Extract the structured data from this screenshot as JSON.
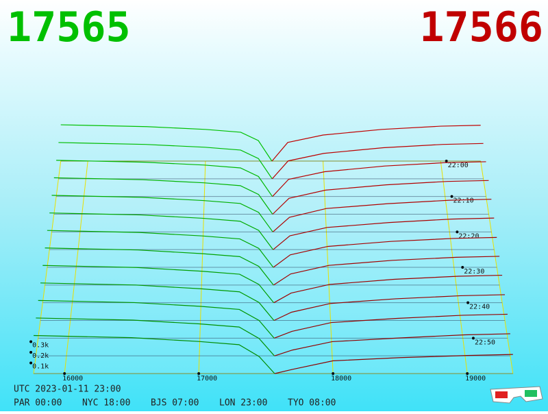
{
  "chart_data": {
    "type": "depth3d",
    "bid_price": 17565,
    "ask_price": 17566,
    "bid_color": "#00c000",
    "ask_color": "#c00000",
    "xlim": [
      15770,
      19340
    ],
    "xticks": [
      16000,
      17000,
      18000,
      19000
    ],
    "zticks": [
      {
        "value": 100,
        "label": "0.1k"
      },
      {
        "value": 200,
        "label": "0.2k"
      },
      {
        "value": 300,
        "label": "0.3k"
      }
    ],
    "tlim": [
      0,
      60
    ],
    "tticks": [
      {
        "value": 0,
        "label": "22:00"
      },
      {
        "value": 10,
        "label": "22:10"
      },
      {
        "value": 20,
        "label": "22:20"
      },
      {
        "value": 30,
        "label": "22:30"
      },
      {
        "value": 40,
        "label": "22:40"
      },
      {
        "value": 50,
        "label": "22:50"
      }
    ],
    "bid_prices": [
      15770,
      16500,
      17000,
      17300,
      17450,
      17565
    ],
    "ask_prices": [
      17566,
      17700,
      18000,
      18500,
      19000,
      19340
    ],
    "snapshots": [
      {
        "t": 0,
        "bid": [
          390,
          370,
          340,
          310,
          220,
          0
        ],
        "ask": [
          0,
          200,
          280,
          340,
          375,
          385
        ]
      },
      {
        "t": 5,
        "bid": [
          385,
          365,
          335,
          305,
          215,
          0
        ],
        "ask": [
          0,
          190,
          270,
          330,
          365,
          375
        ]
      },
      {
        "t": 10,
        "bid": [
          380,
          360,
          330,
          300,
          210,
          0
        ],
        "ask": [
          0,
          180,
          260,
          320,
          355,
          365
        ]
      },
      {
        "t": 15,
        "bid": [
          378,
          358,
          326,
          296,
          205,
          0
        ],
        "ask": [
          0,
          165,
          250,
          305,
          340,
          350
        ]
      },
      {
        "t": 20,
        "bid": [
          375,
          355,
          322,
          292,
          200,
          0
        ],
        "ask": [
          0,
          150,
          240,
          290,
          325,
          335
        ]
      },
      {
        "t": 25,
        "bid": [
          372,
          352,
          318,
          288,
          195,
          0
        ],
        "ask": [
          0,
          140,
          225,
          275,
          310,
          320
        ]
      },
      {
        "t": 30,
        "bid": [
          370,
          350,
          315,
          285,
          190,
          0
        ],
        "ask": [
          0,
          125,
          210,
          260,
          290,
          300
        ]
      },
      {
        "t": 35,
        "bid": [
          368,
          348,
          312,
          282,
          185,
          0
        ],
        "ask": [
          0,
          110,
          195,
          245,
          275,
          285
        ]
      },
      {
        "t": 40,
        "bid": [
          366,
          346,
          310,
          280,
          180,
          0
        ],
        "ask": [
          0,
          95,
          180,
          230,
          260,
          270
        ]
      },
      {
        "t": 45,
        "bid": [
          364,
          344,
          308,
          278,
          175,
          0
        ],
        "ask": [
          0,
          80,
          165,
          210,
          240,
          250
        ]
      },
      {
        "t": 50,
        "bid": [
          362,
          342,
          306,
          276,
          170,
          0
        ],
        "ask": [
          0,
          65,
          150,
          190,
          220,
          230
        ]
      },
      {
        "t": 55,
        "bid": [
          360,
          340,
          304,
          274,
          165,
          0
        ],
        "ask": [
          0,
          55,
          135,
          170,
          200,
          210
        ]
      },
      {
        "t": 60,
        "bid": [
          358,
          338,
          302,
          272,
          160,
          0
        ],
        "ask": [
          0,
          40,
          120,
          150,
          170,
          180
        ]
      }
    ],
    "utc": "UTC 2023-01-11 23:00",
    "clocks": [
      "PAR 00:00",
      "NYC 18:00",
      "BJS 07:00",
      "LON 23:00",
      "TYO 08:00"
    ]
  }
}
